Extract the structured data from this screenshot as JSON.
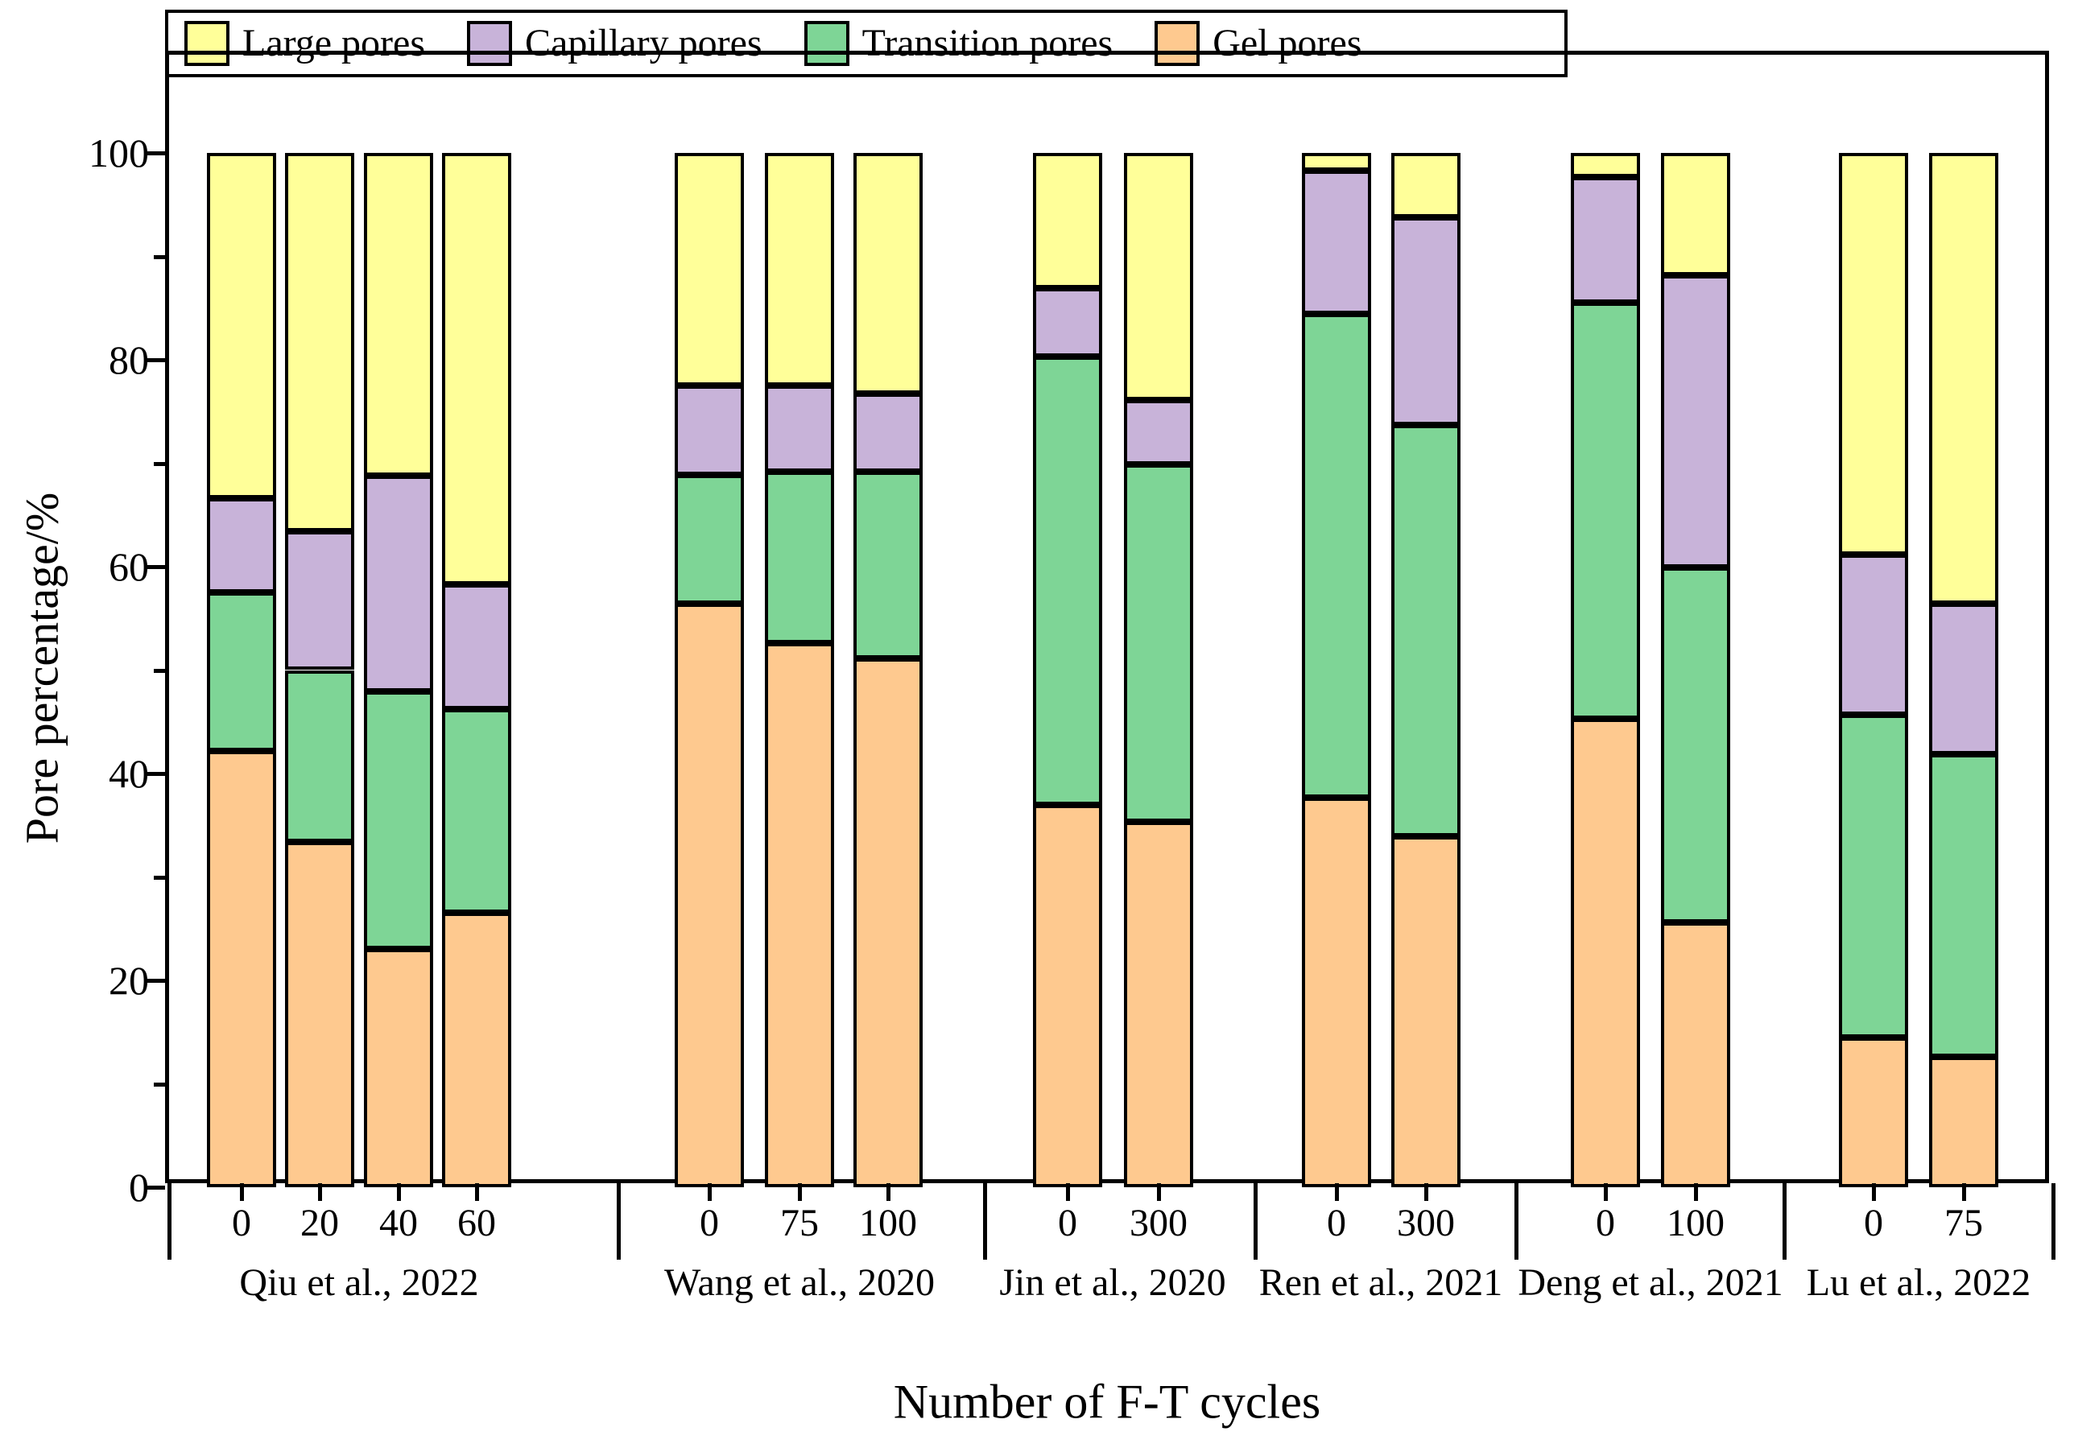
{
  "legend": {
    "items": [
      {
        "key": "large",
        "label": "Large pores",
        "color": "#FFFF99"
      },
      {
        "key": "capillary",
        "label": "Capillary pores",
        "color": "#C8B3D9"
      },
      {
        "key": "transition",
        "label": "Transition pores",
        "color": "#7ED596"
      },
      {
        "key": "gel",
        "label": "Gel pores",
        "color": "#FEC98F"
      }
    ]
  },
  "y_axis": {
    "title": "Pore percentage/%",
    "tick_labels": [
      "0",
      "20",
      "40",
      "60",
      "80",
      "100"
    ],
    "tick_values": [
      0,
      20,
      40,
      60,
      80,
      100
    ],
    "minor_tick_values": [
      10,
      30,
      50,
      70,
      90
    ]
  },
  "x_axis": {
    "title": "Number of F-T cycles"
  },
  "chart_data": {
    "type": "bar",
    "stacked": true,
    "title": "",
    "xlabel": "Number of F-T cycles",
    "ylabel": "Pore percentage/%",
    "ylim": [
      0,
      110
    ],
    "grid": false,
    "legend_position": "top",
    "stack_order_bottom_to_top": [
      "gel",
      "transition",
      "capillary",
      "large"
    ],
    "series_labels": {
      "gel": "Gel pores",
      "transition": "Transition pores",
      "capillary": "Capillary pores",
      "large": "Large pores"
    },
    "groups": [
      {
        "label": "Qiu et al., 2022",
        "bars": [
          {
            "x": "0",
            "values": {
              "gel": 42.2,
              "transition": 15.3,
              "capillary": 9.1,
              "large": 33.4
            }
          },
          {
            "x": "20",
            "values": {
              "gel": 33.4,
              "transition": 16.6,
              "capillary": 13.4,
              "large": 36.6
            }
          },
          {
            "x": "40",
            "values": {
              "gel": 23.0,
              "transition": 24.9,
              "capillary": 20.9,
              "large": 31.2
            }
          },
          {
            "x": "60",
            "values": {
              "gel": 26.5,
              "transition": 19.7,
              "capillary": 12.1,
              "large": 41.7
            }
          }
        ]
      },
      {
        "label": "Wang et al., 2020",
        "bars": [
          {
            "x": "0",
            "values": {
              "gel": 56.4,
              "transition": 12.5,
              "capillary": 8.6,
              "large": 22.5
            }
          },
          {
            "x": "75",
            "values": {
              "gel": 52.6,
              "transition": 16.6,
              "capillary": 8.3,
              "large": 22.5
            }
          },
          {
            "x": "100",
            "values": {
              "gel": 51.1,
              "transition": 18.1,
              "capillary": 7.5,
              "large": 23.3
            }
          }
        ]
      },
      {
        "label": "Jin et al., 2020",
        "bars": [
          {
            "x": "0",
            "values": {
              "gel": 37.0,
              "transition": 43.3,
              "capillary": 6.6,
              "large": 13.1
            }
          },
          {
            "x": "300",
            "values": {
              "gel": 35.3,
              "transition": 34.6,
              "capillary": 6.2,
              "large": 23.9
            }
          }
        ]
      },
      {
        "label": "Ren et al., 2021",
        "bars": [
          {
            "x": "0",
            "values": {
              "gel": 37.7,
              "transition": 46.7,
              "capillary": 13.9,
              "large": 1.7
            }
          },
          {
            "x": "300",
            "values": {
              "gel": 33.9,
              "transition": 39.8,
              "capillary": 20.1,
              "large": 6.2
            }
          }
        ]
      },
      {
        "label": "Deng et al., 2021",
        "bars": [
          {
            "x": "0",
            "values": {
              "gel": 45.3,
              "transition": 40.2,
              "capillary": 12.2,
              "large": 2.3
            }
          },
          {
            "x": "100",
            "values": {
              "gel": 25.6,
              "transition": 34.3,
              "capillary": 28.3,
              "large": 11.8
            }
          }
        ]
      },
      {
        "label": "Lu et al., 2022",
        "bars": [
          {
            "x": "0",
            "values": {
              "gel": 14.5,
              "transition": 31.2,
              "capillary": 15.5,
              "large": 38.8
            }
          },
          {
            "x": "75",
            "values": {
              "gel": 12.6,
              "transition": 29.3,
              "capillary": 14.5,
              "large": 43.6
            }
          }
        ]
      }
    ]
  }
}
